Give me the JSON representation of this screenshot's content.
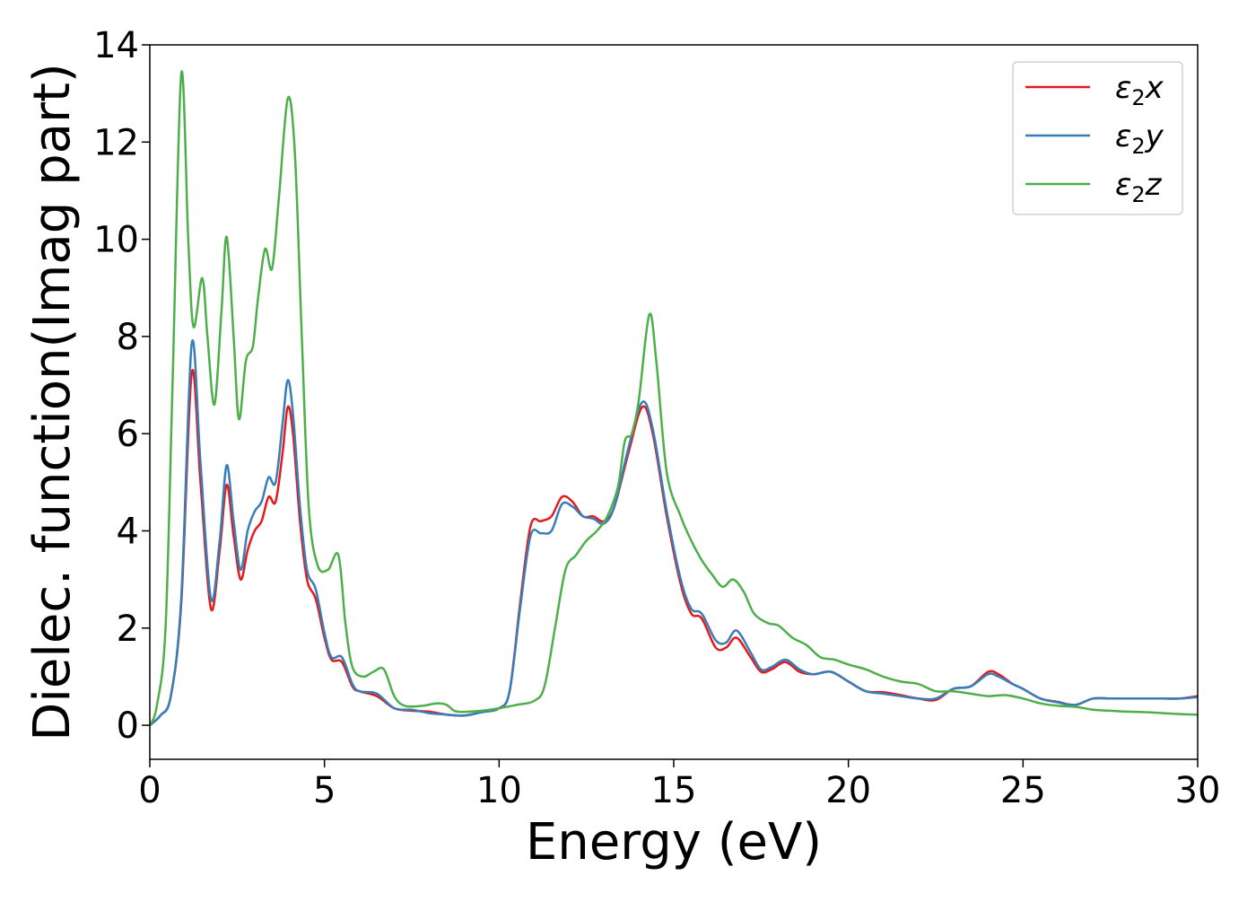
{
  "chart_data": {
    "type": "line",
    "xlabel": "Energy (eV)",
    "ylabel": "Dielec. function(Imag part)",
    "xlim": [
      0,
      30
    ],
    "ylim": [
      -0.7,
      14
    ],
    "xticks": [
      "0",
      "5",
      "10",
      "15",
      "20",
      "25",
      "30"
    ],
    "yticks": [
      "0",
      "2",
      "4",
      "6",
      "8",
      "10",
      "12",
      "14"
    ],
    "grid": false,
    "legend_position": "top-right",
    "series": [
      {
        "name": "ε2x",
        "legend": {
          "base": "ε",
          "sub": "2",
          "suffix": "x"
        },
        "color": "#e41a1c",
        "points": [
          [
            0,
            0
          ],
          [
            0.3,
            0.2
          ],
          [
            0.6,
            0.6
          ],
          [
            0.9,
            2.5
          ],
          [
            1.2,
            7.25
          ],
          [
            1.45,
            5.0
          ],
          [
            1.75,
            2.4
          ],
          [
            2.0,
            3.6
          ],
          [
            2.2,
            4.95
          ],
          [
            2.4,
            3.9
          ],
          [
            2.6,
            3.0
          ],
          [
            2.8,
            3.6
          ],
          [
            3.0,
            4.0
          ],
          [
            3.2,
            4.2
          ],
          [
            3.4,
            4.7
          ],
          [
            3.6,
            4.6
          ],
          [
            3.8,
            5.6
          ],
          [
            3.95,
            6.55
          ],
          [
            4.1,
            6.0
          ],
          [
            4.3,
            4.2
          ],
          [
            4.5,
            3.0
          ],
          [
            4.75,
            2.6
          ],
          [
            5.0,
            1.8
          ],
          [
            5.2,
            1.35
          ],
          [
            5.5,
            1.3
          ],
          [
            5.8,
            0.8
          ],
          [
            6.0,
            0.7
          ],
          [
            6.5,
            0.6
          ],
          [
            7.0,
            0.35
          ],
          [
            7.5,
            0.3
          ],
          [
            8.0,
            0.28
          ],
          [
            8.5,
            0.22
          ],
          [
            9.0,
            0.2
          ],
          [
            9.5,
            0.27
          ],
          [
            10.0,
            0.35
          ],
          [
            10.3,
            0.7
          ],
          [
            10.6,
            2.5
          ],
          [
            10.9,
            4.1
          ],
          [
            11.2,
            4.2
          ],
          [
            11.5,
            4.3
          ],
          [
            11.8,
            4.7
          ],
          [
            12.1,
            4.6
          ],
          [
            12.4,
            4.3
          ],
          [
            12.7,
            4.3
          ],
          [
            13.0,
            4.2
          ],
          [
            13.3,
            4.5
          ],
          [
            13.7,
            5.6
          ],
          [
            14.1,
            6.55
          ],
          [
            14.4,
            6.0
          ],
          [
            14.8,
            4.3
          ],
          [
            15.2,
            2.9
          ],
          [
            15.5,
            2.3
          ],
          [
            15.8,
            2.2
          ],
          [
            16.2,
            1.6
          ],
          [
            16.5,
            1.6
          ],
          [
            16.8,
            1.8
          ],
          [
            17.2,
            1.4
          ],
          [
            17.5,
            1.1
          ],
          [
            17.8,
            1.15
          ],
          [
            18.2,
            1.3
          ],
          [
            18.6,
            1.1
          ],
          [
            19.0,
            1.05
          ],
          [
            19.5,
            1.1
          ],
          [
            20.0,
            0.9
          ],
          [
            20.5,
            0.7
          ],
          [
            21.0,
            0.68
          ],
          [
            21.5,
            0.62
          ],
          [
            22.0,
            0.55
          ],
          [
            22.5,
            0.52
          ],
          [
            23.0,
            0.75
          ],
          [
            23.5,
            0.8
          ],
          [
            24.0,
            1.1
          ],
          [
            24.3,
            1.05
          ],
          [
            24.7,
            0.85
          ],
          [
            25.0,
            0.75
          ],
          [
            25.5,
            0.55
          ],
          [
            26.0,
            0.48
          ],
          [
            26.5,
            0.42
          ],
          [
            27.0,
            0.55
          ],
          [
            27.5,
            0.55
          ],
          [
            28.0,
            0.55
          ],
          [
            28.5,
            0.55
          ],
          [
            29.0,
            0.55
          ],
          [
            29.5,
            0.55
          ],
          [
            30.0,
            0.6
          ]
        ]
      },
      {
        "name": "ε2y",
        "legend": {
          "base": "ε",
          "sub": "2",
          "suffix": "y"
        },
        "color": "#377eb8",
        "points": [
          [
            0,
            0
          ],
          [
            0.3,
            0.2
          ],
          [
            0.6,
            0.6
          ],
          [
            0.9,
            2.6
          ],
          [
            1.2,
            7.85
          ],
          [
            1.45,
            5.4
          ],
          [
            1.75,
            2.6
          ],
          [
            2.0,
            3.8
          ],
          [
            2.2,
            5.35
          ],
          [
            2.4,
            4.2
          ],
          [
            2.6,
            3.2
          ],
          [
            2.8,
            4.0
          ],
          [
            3.0,
            4.4
          ],
          [
            3.2,
            4.6
          ],
          [
            3.4,
            5.1
          ],
          [
            3.6,
            5.0
          ],
          [
            3.8,
            6.2
          ],
          [
            3.95,
            7.1
          ],
          [
            4.1,
            6.4
          ],
          [
            4.3,
            4.5
          ],
          [
            4.5,
            3.2
          ],
          [
            4.75,
            2.8
          ],
          [
            5.0,
            1.9
          ],
          [
            5.2,
            1.4
          ],
          [
            5.5,
            1.4
          ],
          [
            5.8,
            0.85
          ],
          [
            6.0,
            0.7
          ],
          [
            6.5,
            0.65
          ],
          [
            7.0,
            0.35
          ],
          [
            7.5,
            0.32
          ],
          [
            8.0,
            0.25
          ],
          [
            8.5,
            0.22
          ],
          [
            9.0,
            0.2
          ],
          [
            9.5,
            0.27
          ],
          [
            10.0,
            0.35
          ],
          [
            10.3,
            0.7
          ],
          [
            10.6,
            2.4
          ],
          [
            10.9,
            3.9
          ],
          [
            11.2,
            3.95
          ],
          [
            11.5,
            4.0
          ],
          [
            11.8,
            4.55
          ],
          [
            12.1,
            4.5
          ],
          [
            12.4,
            4.3
          ],
          [
            12.7,
            4.25
          ],
          [
            13.0,
            4.15
          ],
          [
            13.3,
            4.5
          ],
          [
            13.7,
            5.7
          ],
          [
            14.1,
            6.65
          ],
          [
            14.4,
            6.1
          ],
          [
            14.8,
            4.4
          ],
          [
            15.2,
            3.0
          ],
          [
            15.5,
            2.4
          ],
          [
            15.8,
            2.3
          ],
          [
            16.2,
            1.75
          ],
          [
            16.5,
            1.7
          ],
          [
            16.8,
            1.95
          ],
          [
            17.2,
            1.5
          ],
          [
            17.5,
            1.15
          ],
          [
            17.8,
            1.2
          ],
          [
            18.2,
            1.35
          ],
          [
            18.6,
            1.15
          ],
          [
            19.0,
            1.05
          ],
          [
            19.5,
            1.1
          ],
          [
            20.0,
            0.9
          ],
          [
            20.5,
            0.7
          ],
          [
            21.0,
            0.65
          ],
          [
            21.5,
            0.6
          ],
          [
            22.0,
            0.55
          ],
          [
            22.5,
            0.55
          ],
          [
            23.0,
            0.75
          ],
          [
            23.5,
            0.8
          ],
          [
            24.0,
            1.05
          ],
          [
            24.3,
            1.0
          ],
          [
            24.7,
            0.85
          ],
          [
            25.0,
            0.75
          ],
          [
            25.5,
            0.55
          ],
          [
            26.0,
            0.47
          ],
          [
            26.5,
            0.42
          ],
          [
            27.0,
            0.55
          ],
          [
            27.5,
            0.55
          ],
          [
            28.0,
            0.55
          ],
          [
            28.5,
            0.55
          ],
          [
            29.0,
            0.55
          ],
          [
            29.5,
            0.55
          ],
          [
            30.0,
            0.58
          ]
        ]
      },
      {
        "name": "ε2z",
        "legend": {
          "base": "ε",
          "sub": "2",
          "suffix": "z"
        },
        "color": "#4daf4a",
        "points": [
          [
            0,
            0
          ],
          [
            0.2,
            0.4
          ],
          [
            0.45,
            2.0
          ],
          [
            0.65,
            7.0
          ],
          [
            0.9,
            13.4
          ],
          [
            1.1,
            10.0
          ],
          [
            1.25,
            8.2
          ],
          [
            1.5,
            9.2
          ],
          [
            1.65,
            8.0
          ],
          [
            1.85,
            6.6
          ],
          [
            2.05,
            8.5
          ],
          [
            2.2,
            10.05
          ],
          [
            2.4,
            8.0
          ],
          [
            2.55,
            6.3
          ],
          [
            2.75,
            7.5
          ],
          [
            2.95,
            7.8
          ],
          [
            3.1,
            8.8
          ],
          [
            3.3,
            9.8
          ],
          [
            3.5,
            9.4
          ],
          [
            3.7,
            10.9
          ],
          [
            3.95,
            12.9
          ],
          [
            4.15,
            11.8
          ],
          [
            4.35,
            8.0
          ],
          [
            4.55,
            4.5
          ],
          [
            4.8,
            3.3
          ],
          [
            5.1,
            3.2
          ],
          [
            5.4,
            3.5
          ],
          [
            5.6,
            2.1
          ],
          [
            5.8,
            1.2
          ],
          [
            6.1,
            1.0
          ],
          [
            6.4,
            1.1
          ],
          [
            6.7,
            1.15
          ],
          [
            7.0,
            0.6
          ],
          [
            7.3,
            0.4
          ],
          [
            7.8,
            0.4
          ],
          [
            8.2,
            0.45
          ],
          [
            8.5,
            0.42
          ],
          [
            8.8,
            0.28
          ],
          [
            9.5,
            0.3
          ],
          [
            10.0,
            0.35
          ],
          [
            10.5,
            0.42
          ],
          [
            11.0,
            0.5
          ],
          [
            11.3,
            0.8
          ],
          [
            11.6,
            2.0
          ],
          [
            11.9,
            3.2
          ],
          [
            12.2,
            3.5
          ],
          [
            12.5,
            3.8
          ],
          [
            12.8,
            4.0
          ],
          [
            13.1,
            4.3
          ],
          [
            13.4,
            4.9
          ],
          [
            13.6,
            5.85
          ],
          [
            13.8,
            6.0
          ],
          [
            14.0,
            6.7
          ],
          [
            14.3,
            8.45
          ],
          [
            14.5,
            7.5
          ],
          [
            14.8,
            5.2
          ],
          [
            15.2,
            4.3
          ],
          [
            15.5,
            3.8
          ],
          [
            15.8,
            3.4
          ],
          [
            16.1,
            3.1
          ],
          [
            16.4,
            2.85
          ],
          [
            16.7,
            3.0
          ],
          [
            17.0,
            2.75
          ],
          [
            17.3,
            2.3
          ],
          [
            17.7,
            2.1
          ],
          [
            18.0,
            2.05
          ],
          [
            18.4,
            1.8
          ],
          [
            18.8,
            1.65
          ],
          [
            19.2,
            1.4
          ],
          [
            19.6,
            1.35
          ],
          [
            20.0,
            1.25
          ],
          [
            20.5,
            1.15
          ],
          [
            21.0,
            1.0
          ],
          [
            21.5,
            0.9
          ],
          [
            22.0,
            0.85
          ],
          [
            22.5,
            0.7
          ],
          [
            23.0,
            0.7
          ],
          [
            23.5,
            0.65
          ],
          [
            24.0,
            0.6
          ],
          [
            24.5,
            0.62
          ],
          [
            25.0,
            0.55
          ],
          [
            25.5,
            0.45
          ],
          [
            26.0,
            0.4
          ],
          [
            26.5,
            0.38
          ],
          [
            27.0,
            0.32
          ],
          [
            27.5,
            0.3
          ],
          [
            28.0,
            0.28
          ],
          [
            28.5,
            0.27
          ],
          [
            29.0,
            0.25
          ],
          [
            29.5,
            0.23
          ],
          [
            30.0,
            0.22
          ]
        ]
      }
    ]
  }
}
